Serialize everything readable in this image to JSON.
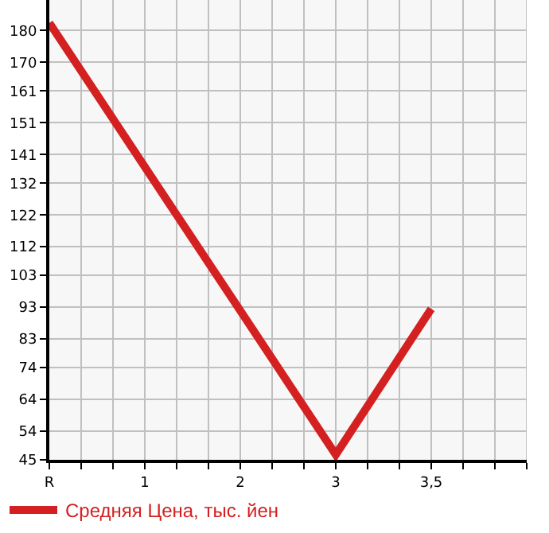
{
  "chart_data": {
    "type": "line",
    "categories": [
      "R",
      "1",
      "2",
      "3",
      "3,5"
    ],
    "series": [
      {
        "name": "Средняя Цена, тыс. йен",
        "color": "#d42020",
        "values": [
          182.4,
          137.1,
          91.9,
          46.6,
          92.5
        ]
      }
    ],
    "ylim": [
      45,
      189.6
    ],
    "yticks": [
      45,
      54,
      64,
      74,
      83,
      93,
      103,
      112,
      122,
      132,
      141,
      151,
      161,
      170,
      180
    ],
    "grid": true,
    "legend": "bottom",
    "marker": "none",
    "line_style": "solid"
  }
}
